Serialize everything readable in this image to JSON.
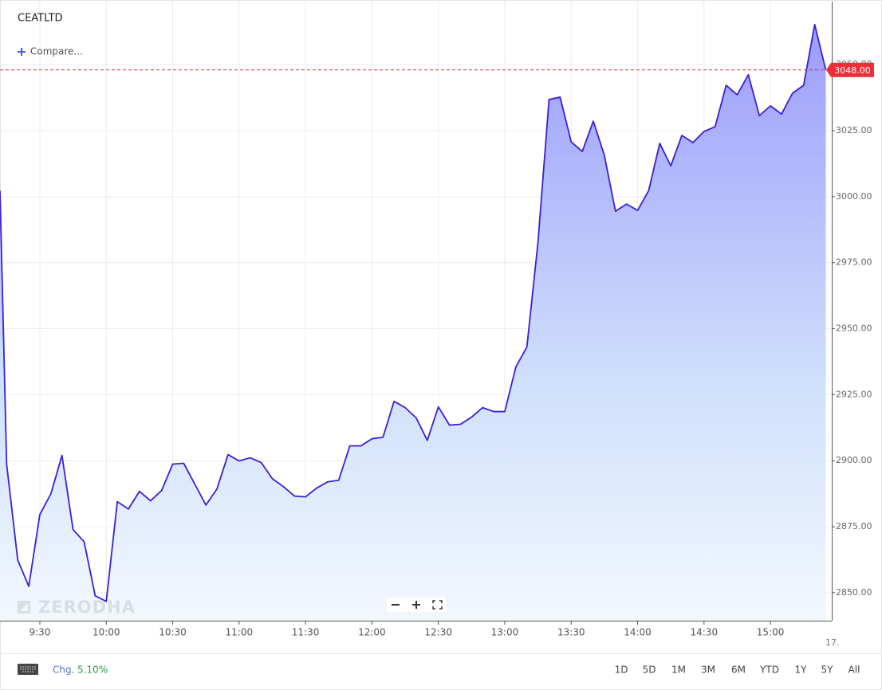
{
  "app": {
    "compare": "Compare...",
    "watermark": "ZERODHA",
    "axis_fragment": "17.",
    "change_label": "Chg.",
    "change_value": "5.10%",
    "ranges": [
      "1D",
      "5D",
      "1M",
      "3M",
      "6M",
      "YTD",
      "1Y",
      "5Y",
      "All"
    ]
  },
  "chart_data": {
    "type": "area",
    "title": "CEATLTD",
    "color": "#3a1fd6",
    "grid": true,
    "x": [
      552,
      555,
      560,
      565,
      570,
      575,
      580,
      585,
      590,
      595,
      600,
      605,
      610,
      615,
      620,
      625,
      630,
      635,
      640,
      645,
      650,
      655,
      660,
      665,
      670,
      675,
      680,
      685,
      690,
      695,
      700,
      705,
      710,
      715,
      720,
      725,
      730,
      735,
      740,
      745,
      750,
      755,
      760,
      765,
      770,
      775,
      780,
      785,
      790,
      795,
      800,
      805,
      810,
      815,
      820,
      825,
      830,
      835,
      840,
      845,
      850,
      855,
      860,
      865,
      870,
      875,
      880,
      885,
      890,
      895,
      900,
      905,
      910,
      915,
      920,
      925
    ],
    "values": [
      3002.3,
      2898.7,
      2862.4,
      2852.4,
      2879.6,
      2887.5,
      2902.0,
      2873.9,
      2869.3,
      2848.8,
      2846.7,
      2884.5,
      2881.7,
      2888.4,
      2884.8,
      2888.7,
      2898.7,
      2899.0,
      2891.1,
      2883.2,
      2889.3,
      2902.3,
      2899.9,
      2901.1,
      2899.3,
      2893.2,
      2890.2,
      2886.6,
      2886.3,
      2889.6,
      2892.0,
      2892.6,
      2905.6,
      2905.6,
      2908.3,
      2908.9,
      2922.5,
      2920.1,
      2916.2,
      2907.7,
      2920.4,
      2913.5,
      2913.8,
      2916.5,
      2920.1,
      2918.6,
      2918.6,
      2935.5,
      2943.1,
      2982.7,
      3036.8,
      3037.7,
      3020.8,
      3017.1,
      3028.6,
      3015.6,
      2994.5,
      2997.2,
      2994.8,
      3002.3,
      3020.2,
      3011.7,
      3023.2,
      3020.5,
      3024.7,
      3026.5,
      3042.2,
      3038.6,
      3046.2,
      3030.7,
      3034.4,
      3031.3,
      3039.2,
      3042.2,
      3065.2,
      3048.0
    ],
    "last_price": {
      "value": 3048,
      "label": "3048.00"
    },
    "xlim": [
      552,
      927.7
    ],
    "xticks": [
      {
        "value": 570,
        "label": "9:30"
      },
      {
        "value": 600,
        "label": "10:00"
      },
      {
        "value": 630,
        "label": "10:30"
      },
      {
        "value": 660,
        "label": "11:00"
      },
      {
        "value": 690,
        "label": "11:30"
      },
      {
        "value": 720,
        "label": "12:00"
      },
      {
        "value": 750,
        "label": "12:30"
      },
      {
        "value": 780,
        "label": "13:00"
      },
      {
        "value": 810,
        "label": "13:30"
      },
      {
        "value": 840,
        "label": "14:00"
      },
      {
        "value": 870,
        "label": "14:30"
      },
      {
        "value": 900,
        "label": "15:00"
      }
    ],
    "ylim": [
      2839.4,
      3074.5
    ],
    "yticks": [
      {
        "value": 2850,
        "label": "2850.00"
      },
      {
        "value": 2875,
        "label": "2875.00"
      },
      {
        "value": 2900,
        "label": "2900.00"
      },
      {
        "value": 2925,
        "label": "2925.00"
      },
      {
        "value": 2950,
        "label": "2950.00"
      },
      {
        "value": 2975,
        "label": "2975.00"
      },
      {
        "value": 3000,
        "label": "3000.00"
      },
      {
        "value": 3025,
        "label": "3025.00"
      },
      {
        "value": 3050,
        "label": "3050.00"
      }
    ]
  }
}
